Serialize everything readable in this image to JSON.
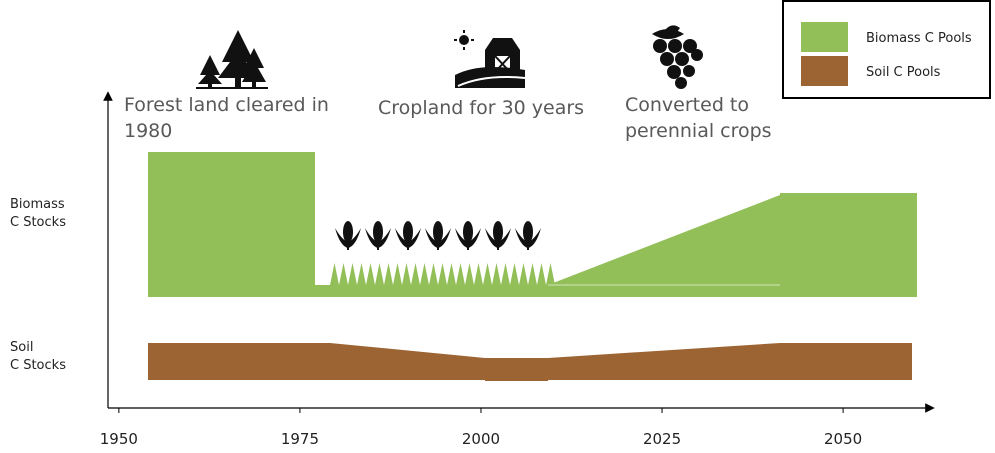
{
  "annotations": [
    {
      "lines": [
        "Forest land cleared in",
        "1980"
      ]
    },
    {
      "lines": [
        "Cropland for 30 years"
      ]
    },
    {
      "lines": [
        "Converted to",
        "perennial crops"
      ]
    }
  ],
  "y_labels": [
    {
      "lines": [
        "Biomass",
        "C Stocks"
      ]
    },
    {
      "lines": [
        "Soil",
        "C Stocks"
      ]
    }
  ],
  "legend": [
    {
      "name": "Biomass C Pools",
      "color": "#92bf58"
    },
    {
      "name": "Soil C Pools",
      "color": "#9c6433"
    }
  ],
  "x_axis": {
    "xlim": [
      1948.5,
      2062
    ],
    "xticks": [
      1950,
      1975,
      2000,
      2025,
      2050
    ]
  }
}
